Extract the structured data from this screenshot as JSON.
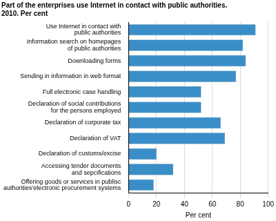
{
  "chart_data": {
    "type": "bar",
    "orientation": "horizontal",
    "title": [
      "Part of the enterprises use Internet in contact with public authorities.",
      "2010. Per cent"
    ],
    "x_label": "Per cent",
    "categories": [
      [
        "Use Internet in contact with",
        "public authorities"
      ],
      [
        "Information search on homepages",
        "of public authorities"
      ],
      [
        "Downloading forms"
      ],
      [
        "Sending in information in web format"
      ],
      [
        "Full electronic case handling"
      ],
      [
        "Declaration of social contributions",
        "for the persons employed"
      ],
      [
        "Declaration of corporate tax"
      ],
      [
        "Declaration of VAT"
      ],
      [
        "Declaration of customs/excise"
      ],
      [
        "Accessing tender documents",
        "and sepcifications"
      ],
      [
        "Offering goods or services in publisc",
        "authorities'electronic procurement systems"
      ]
    ],
    "values": [
      91,
      82,
      84,
      77,
      52,
      52,
      66,
      69,
      20,
      32,
      18
    ],
    "color": "#3a8ec8",
    "xlim": [
      0,
      100
    ],
    "xticks": [
      0,
      20,
      40,
      60,
      80,
      100
    ],
    "grid": true
  }
}
